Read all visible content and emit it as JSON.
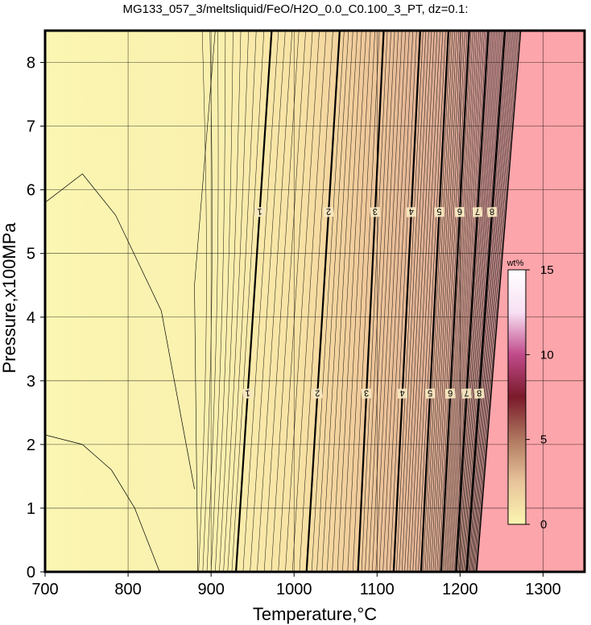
{
  "chart_data": {
    "type": "contour",
    "title": "MG133_057_3/meltsliquid/FeO/H2O_0.0_C0.100_3_PT, dz=0.1:",
    "xlabel": "Temperature,°C",
    "ylabel": "Pressure,x100MPa",
    "xlim": [
      700,
      1350
    ],
    "ylim": [
      0,
      8.5
    ],
    "x_ticks": [
      700,
      800,
      900,
      1000,
      1100,
      1200,
      1300
    ],
    "y_ticks": [
      0,
      1,
      2,
      3,
      4,
      5,
      6,
      7,
      8
    ],
    "grid": true,
    "background_color": "#fbf5b0",
    "saturation_color": "#fca5aa",
    "saturation_boundary": {
      "p": [
        0,
        8.5
      ],
      "t": [
        1220,
        1273
      ]
    },
    "thin_left_curves": [
      {
        "t": [
          700,
          745,
          785,
          840,
          880
        ],
        "p": [
          5.8,
          6.25,
          5.6,
          4.1,
          1.3
        ]
      },
      {
        "t": [
          700,
          745,
          780,
          808,
          838
        ],
        "p": [
          2.15,
          2.0,
          1.6,
          1.0,
          0.0
        ]
      }
    ],
    "contour_spacing": 0.1,
    "thin_contour_range": [
      0.0,
      8.9
    ],
    "major_contours": [
      {
        "level": 1,
        "t_bottom": 930,
        "t_top": 973,
        "label": "1",
        "label_positions_p": [
          2.8,
          5.65
        ]
      },
      {
        "level": 2,
        "t_bottom": 1015,
        "t_top": 1055,
        "label": "2",
        "label_positions_p": [
          2.8,
          5.65
        ]
      },
      {
        "level": 3,
        "t_bottom": 1077,
        "t_top": 1108,
        "label": "3",
        "label_positions_p": [
          2.8,
          5.65
        ]
      },
      {
        "level": 4,
        "t_bottom": 1120,
        "t_top": 1152,
        "label": "4",
        "label_positions_p": [
          2.8,
          5.65
        ]
      },
      {
        "level": 5,
        "t_bottom": 1153,
        "t_top": 1186,
        "label": "5",
        "label_positions_p": [
          2.8,
          5.65
        ]
      },
      {
        "level": 6,
        "t_bottom": 1177,
        "t_top": 1211,
        "label": "6",
        "label_positions_p": [
          2.8,
          5.65
        ]
      },
      {
        "level": 7,
        "t_bottom": 1195,
        "t_top": 1234,
        "label": "7",
        "label_positions_p": [
          2.8,
          5.65
        ]
      },
      {
        "level": 8,
        "t_bottom": 1208,
        "t_top": 1254,
        "label": "8",
        "label_positions_p": [
          2.8,
          5.65
        ]
      }
    ],
    "colorbar": {
      "title": "wt%",
      "range": [
        0,
        15
      ],
      "ticks": [
        "0",
        "5",
        "10",
        "15"
      ],
      "colors": [
        "#fbf5b0",
        "#e8c49a",
        "#b07860",
        "#7a1a2a",
        "#c04a8a",
        "#f8e0f4",
        "#ffffff"
      ]
    }
  }
}
